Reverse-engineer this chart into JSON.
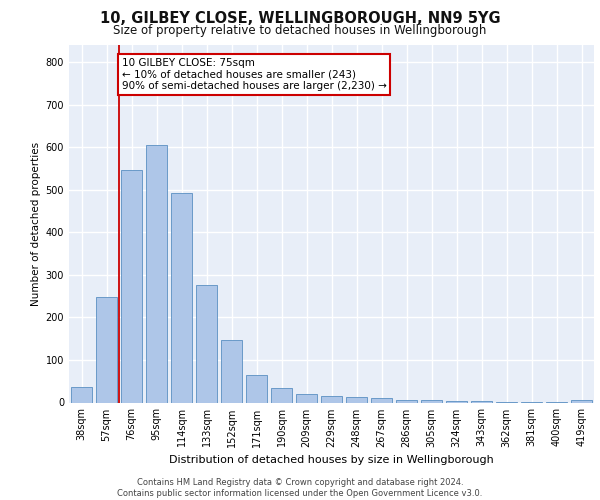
{
  "title1": "10, GILBEY CLOSE, WELLINGBOROUGH, NN9 5YG",
  "title2": "Size of property relative to detached houses in Wellingborough",
  "xlabel": "Distribution of detached houses by size in Wellingborough",
  "ylabel": "Number of detached properties",
  "categories": [
    "38sqm",
    "57sqm",
    "76sqm",
    "95sqm",
    "114sqm",
    "133sqm",
    "152sqm",
    "171sqm",
    "190sqm",
    "209sqm",
    "229sqm",
    "248sqm",
    "267sqm",
    "286sqm",
    "305sqm",
    "324sqm",
    "343sqm",
    "362sqm",
    "381sqm",
    "400sqm",
    "419sqm"
  ],
  "values": [
    37,
    248,
    547,
    606,
    493,
    277,
    147,
    65,
    33,
    20,
    15,
    12,
    10,
    7,
    5,
    4,
    3,
    2,
    1,
    1,
    7
  ],
  "bar_color": "#aec6e8",
  "bar_edgecolor": "#5a8fc2",
  "marker_color": "#cc0000",
  "annotation_text": "10 GILBEY CLOSE: 75sqm\n← 10% of detached houses are smaller (243)\n90% of semi-detached houses are larger (2,230) →",
  "annotation_box_edgecolor": "#cc0000",
  "background_color": "#e8eef8",
  "grid_color": "#ffffff",
  "footer_text": "Contains HM Land Registry data © Crown copyright and database right 2024.\nContains public sector information licensed under the Open Government Licence v3.0.",
  "ylim": [
    0,
    840
  ],
  "yticks": [
    0,
    100,
    200,
    300,
    400,
    500,
    600,
    700,
    800
  ],
  "title1_fontsize": 10.5,
  "title2_fontsize": 8.5,
  "xlabel_fontsize": 8,
  "ylabel_fontsize": 7.5,
  "tick_fontsize": 7,
  "annotation_fontsize": 7.5,
  "footer_fontsize": 6
}
